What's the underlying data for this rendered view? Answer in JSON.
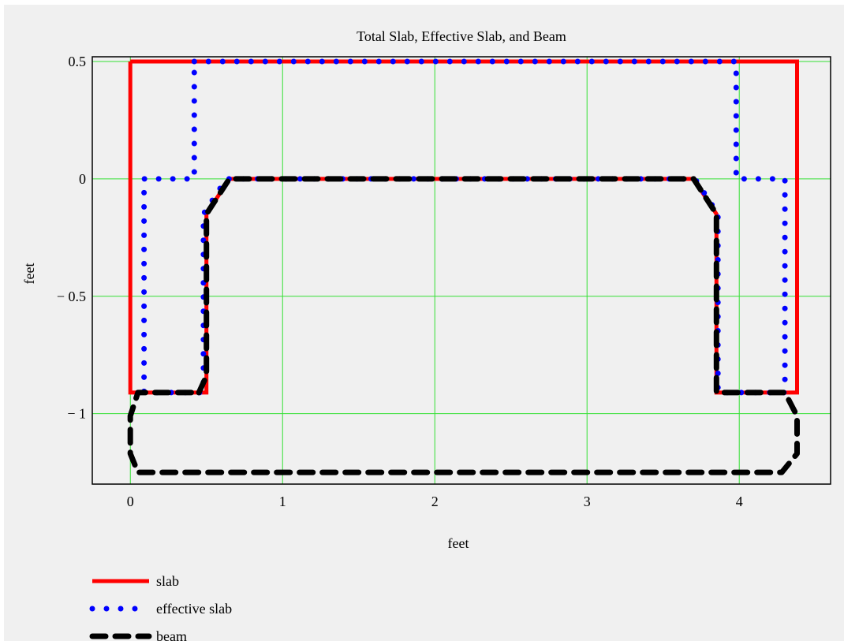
{
  "chart_data": {
    "type": "line",
    "title": "Total Slab, Effective Slab, and Beam",
    "xlabel": "feet",
    "ylabel": "feet",
    "xlim": [
      -0.25,
      4.6
    ],
    "ylim": [
      -1.3,
      0.52
    ],
    "xticks": [
      0,
      1,
      2,
      3,
      4
    ],
    "xtick_labels": [
      "0",
      "1",
      "2",
      "3",
      "4"
    ],
    "yticks": [
      0.5,
      0,
      -0.5,
      -1
    ],
    "ytick_labels": [
      "0.5",
      "0",
      "− 0.5",
      "− 1"
    ],
    "grid": true,
    "grid_color": "#33e033",
    "legend_placement": "bottom-left",
    "series": [
      {
        "name": "slab",
        "style": "solid",
        "color": "#ff0000",
        "x": [
          0,
          0,
          0.5,
          0.5,
          0.65,
          3.7,
          3.85,
          3.85,
          4.38,
          4.38,
          0
        ],
        "y": [
          0.5,
          -0.91,
          -0.91,
          -0.15,
          0,
          0,
          -0.15,
          -0.91,
          -0.91,
          0.5,
          0.5
        ]
      },
      {
        "name": "effective slab",
        "style": "dotted",
        "color": "#0000ff",
        "x": [
          0.42,
          3.98,
          3.98,
          4.3,
          4.3,
          3.86,
          3.86,
          3.71,
          0.63,
          0.48,
          0.48,
          0.09,
          0.09,
          0.42,
          0.42
        ],
        "y": [
          0.5,
          0.5,
          0,
          0,
          -0.91,
          -0.91,
          -0.15,
          0,
          0,
          -0.15,
          -0.91,
          -0.91,
          0,
          0,
          0.5
        ]
      },
      {
        "name": "beam",
        "style": "dashed",
        "color": "#000000",
        "x": [
          0.45,
          0.5,
          0.5,
          0.65,
          3.7,
          3.85,
          3.85,
          3.97,
          4.3,
          4.38,
          4.38,
          4.28,
          0.05,
          0,
          0,
          0.05,
          0.45
        ],
        "y": [
          -0.91,
          -0.84,
          -0.15,
          0,
          0,
          -0.15,
          -0.91,
          -0.91,
          -0.91,
          -1.01,
          -1.17,
          -1.25,
          -1.25,
          -1.17,
          -1.01,
          -0.91,
          -0.91
        ]
      }
    ]
  }
}
